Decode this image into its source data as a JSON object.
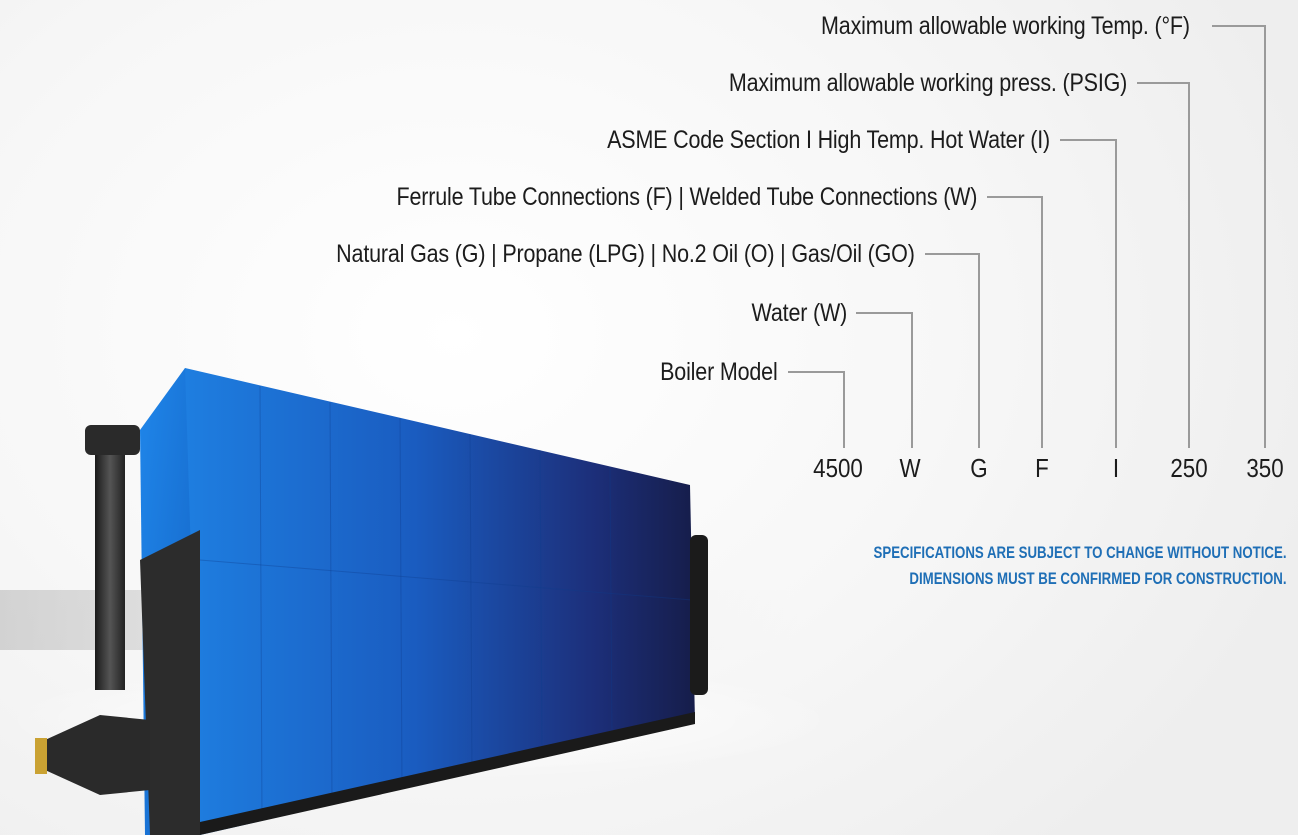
{
  "legend": [
    {
      "text": "Maximum allowable working Temp. (°F)",
      "code": "350"
    },
    {
      "text": "Maximum allowable working press. (PSIG)",
      "code": "250"
    },
    {
      "text": "ASME Code Section I High Temp. Hot Water (I)",
      "code": "I"
    },
    {
      "text": "Ferrule Tube Connections (F) | Welded Tube Connections (W)",
      "code": "F"
    },
    {
      "text": "Natural Gas (G) | Propane (LPG) | No.2  Oil  (O) | Gas/Oil (GO)",
      "code": "G"
    },
    {
      "text": "Water (W)",
      "code": "W"
    },
    {
      "text": "Boiler Model",
      "code": "4500"
    }
  ],
  "notice": {
    "line1": "SPECIFICATIONS ARE SUBJECT TO CHANGE WITHOUT NOTICE.",
    "line2": "DIMENSIONS MUST BE CONFIRMED FOR CONSTRUCTION."
  },
  "colors": {
    "boiler_blue": "#1b6fd0",
    "boiler_dark": "#1a1f4a",
    "leader_line": "#9a9a9a",
    "notice_blue": "#1f6fb6"
  }
}
